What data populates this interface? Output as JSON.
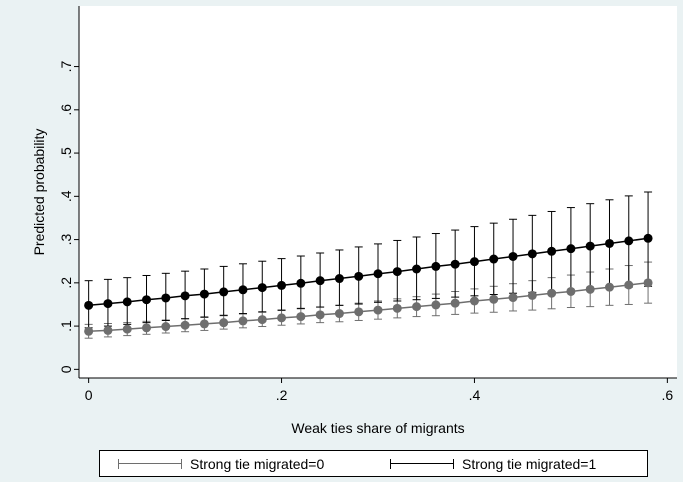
{
  "chart_data": {
    "type": "line",
    "xlabel": "Weak ties share of migrants",
    "ylabel": "Predicted probability",
    "xlim": [
      -0.01,
      0.61
    ],
    "ylim": [
      -0.02,
      0.84
    ],
    "xticks": [
      0,
      0.2,
      0.4,
      0.6
    ],
    "xtick_labels": [
      "0",
      ".2",
      ".4",
      ".6"
    ],
    "yticks": [
      0,
      0.1,
      0.2,
      0.3,
      0.4,
      0.5,
      0.6,
      0.7
    ],
    "ytick_labels": [
      "0",
      ".1",
      ".2",
      ".3",
      ".4",
      ".5",
      ".6",
      ".7"
    ],
    "x": [
      0,
      0.02,
      0.04,
      0.06,
      0.08,
      0.1,
      0.12,
      0.14,
      0.16,
      0.18,
      0.2,
      0.22,
      0.24,
      0.26,
      0.28,
      0.3,
      0.32,
      0.34,
      0.36,
      0.38,
      0.4,
      0.42,
      0.44,
      0.46,
      0.48,
      0.5,
      0.52,
      0.54,
      0.56,
      0.58
    ],
    "series": [
      {
        "name": "Strong tie migrated=0",
        "color": "#6e6e6e",
        "values": [
          0.088,
          0.09,
          0.093,
          0.096,
          0.099,
          0.102,
          0.105,
          0.108,
          0.112,
          0.115,
          0.119,
          0.122,
          0.126,
          0.129,
          0.133,
          0.137,
          0.141,
          0.145,
          0.149,
          0.153,
          0.158,
          0.162,
          0.166,
          0.171,
          0.176,
          0.18,
          0.185,
          0.19,
          0.195,
          0.2
        ],
        "lower": [
          0.072,
          0.075,
          0.078,
          0.081,
          0.084,
          0.087,
          0.09,
          0.093,
          0.096,
          0.099,
          0.102,
          0.105,
          0.108,
          0.11,
          0.113,
          0.116,
          0.119,
          0.122,
          0.124,
          0.127,
          0.13,
          0.132,
          0.135,
          0.137,
          0.14,
          0.143,
          0.145,
          0.148,
          0.15,
          0.153
        ],
        "upper": [
          0.104,
          0.106,
          0.108,
          0.111,
          0.114,
          0.117,
          0.12,
          0.124,
          0.128,
          0.132,
          0.136,
          0.14,
          0.144,
          0.148,
          0.153,
          0.158,
          0.163,
          0.168,
          0.174,
          0.18,
          0.186,
          0.192,
          0.198,
          0.205,
          0.212,
          0.218,
          0.225,
          0.232,
          0.24,
          0.248
        ]
      },
      {
        "name": "Strong tie migrated=1",
        "color": "#000000",
        "values": [
          0.148,
          0.152,
          0.156,
          0.161,
          0.165,
          0.17,
          0.174,
          0.179,
          0.184,
          0.189,
          0.194,
          0.199,
          0.205,
          0.21,
          0.215,
          0.221,
          0.226,
          0.232,
          0.238,
          0.243,
          0.249,
          0.255,
          0.261,
          0.267,
          0.273,
          0.279,
          0.285,
          0.291,
          0.297,
          0.303
        ],
        "lower": [
          0.096,
          0.1,
          0.104,
          0.108,
          0.113,
          0.117,
          0.121,
          0.125,
          0.129,
          0.133,
          0.137,
          0.141,
          0.144,
          0.148,
          0.151,
          0.155,
          0.158,
          0.161,
          0.164,
          0.167,
          0.17,
          0.173,
          0.176,
          0.178,
          0.18,
          0.183,
          0.185,
          0.187,
          0.19,
          0.192
        ],
        "upper": [
          0.205,
          0.208,
          0.212,
          0.217,
          0.222,
          0.227,
          0.232,
          0.238,
          0.244,
          0.25,
          0.256,
          0.262,
          0.269,
          0.276,
          0.283,
          0.29,
          0.298,
          0.306,
          0.314,
          0.322,
          0.33,
          0.338,
          0.347,
          0.356,
          0.365,
          0.374,
          0.383,
          0.392,
          0.401,
          0.41
        ]
      }
    ],
    "legend_position": "bottom",
    "grid": false
  }
}
